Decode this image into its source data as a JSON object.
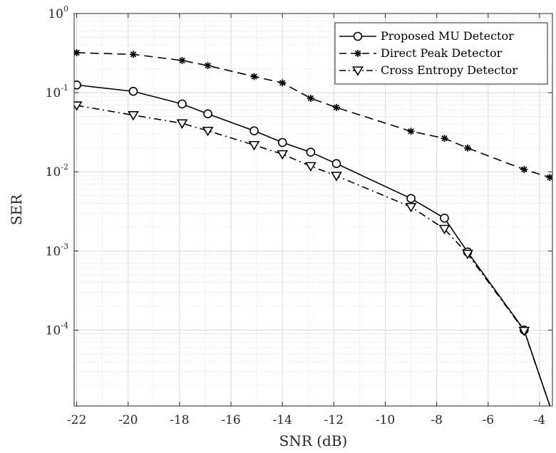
{
  "chart_data": {
    "type": "line",
    "xlabel": "SNR (dB)",
    "ylabel": "SER",
    "xlim": [
      -22.1,
      -3.5
    ],
    "ylim": [
      1.1e-05,
      1
    ],
    "yscale": "log",
    "grid": true,
    "minor_grid": true,
    "legend_position": "top-right",
    "x_ticks": [
      -22,
      -20,
      -18,
      -16,
      -14,
      -12,
      -10,
      -8,
      -6,
      -4
    ],
    "x_tick_labels": [
      "-22",
      "-20",
      "-18",
      "-16",
      "-14",
      "-12",
      "-10",
      "-8",
      "-6",
      "-4"
    ],
    "y_ticks": [
      {
        "value": 1,
        "base": "10",
        "exp": "0"
      },
      {
        "value": 0.1,
        "base": "10",
        "exp": "-1"
      },
      {
        "value": 0.01,
        "base": "10",
        "exp": "-2"
      },
      {
        "value": 0.001,
        "base": "10",
        "exp": "-3"
      },
      {
        "value": 0.0001,
        "base": "10",
        "exp": "-4"
      }
    ],
    "series": [
      {
        "name": "Proposed MU Detector",
        "style": "solid",
        "marker": "circle",
        "color": "#000000",
        "x": [
          -22,
          -19.8,
          -17.9,
          -16.9,
          -15.1,
          -14,
          -12.9,
          -11.9,
          -9,
          -7.7,
          -6.8,
          -4.6,
          -3.6
        ],
        "y": [
          0.125,
          0.104,
          0.072,
          0.054,
          0.033,
          0.0235,
          0.0177,
          0.0127,
          0.0046,
          0.0026,
          0.00097,
          0.0001,
          1.1e-05
        ]
      },
      {
        "name": "Direct Peak Detector",
        "style": "dashed",
        "marker": "asterisk",
        "color": "#000000",
        "x": [
          -22,
          -19.8,
          -17.9,
          -16.9,
          -15.1,
          -14,
          -12.9,
          -11.9,
          -9,
          -7.7,
          -6.8,
          -4.6,
          -3.6
        ],
        "y": [
          0.32,
          0.305,
          0.255,
          0.22,
          0.16,
          0.133,
          0.085,
          0.065,
          0.0325,
          0.0265,
          0.02,
          0.0107,
          0.0085
        ]
      },
      {
        "name": "Cross Entropy Detector",
        "style": "dashdot",
        "marker": "triangle-down",
        "color": "#000000",
        "x": [
          -22,
          -19.8,
          -17.9,
          -16.9,
          -15.1,
          -14,
          -12.9,
          -11.9,
          -9,
          -7.7,
          -6.8,
          -4.6,
          -3.6
        ],
        "y": [
          0.069,
          0.052,
          0.041,
          0.033,
          0.0218,
          0.0167,
          0.0118,
          0.0089,
          0.0036,
          0.0019,
          0.00092,
          9.8e-05,
          1.1e-05
        ]
      }
    ]
  }
}
